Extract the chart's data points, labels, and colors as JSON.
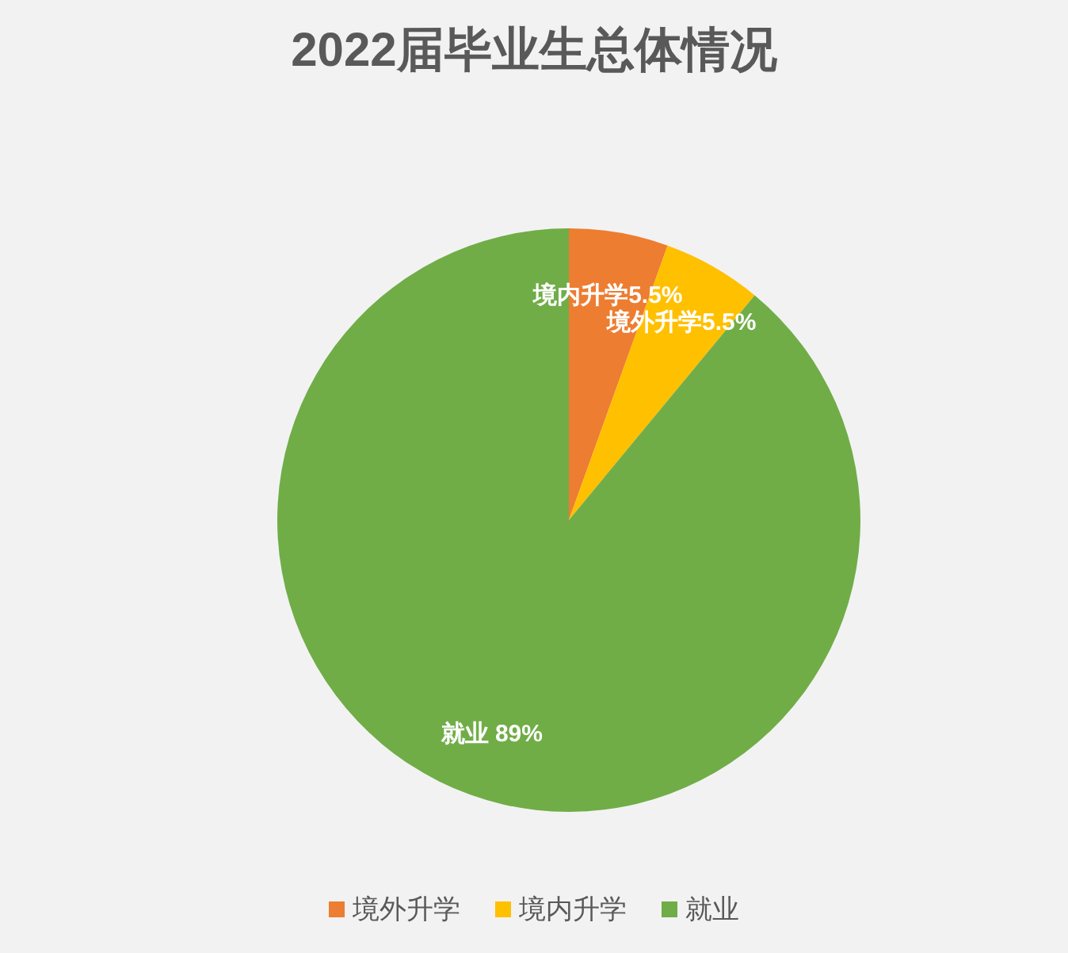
{
  "chart_data": {
    "type": "pie",
    "title": "2022届毕业生总体情况",
    "categories": [
      "境外升学",
      "境内升学",
      "就业"
    ],
    "values": [
      5.5,
      5.5,
      89
    ],
    "colors": [
      "#ed7d31",
      "#ffc000",
      "#70ad47"
    ],
    "value_labels": [
      "境内升学5.5%",
      "境外升学5.5%",
      "就业 89%"
    ],
    "legend": "bottom"
  }
}
